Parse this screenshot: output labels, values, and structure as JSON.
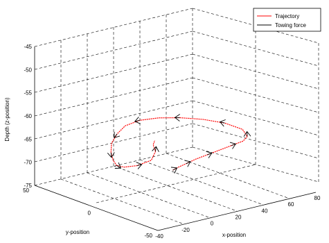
{
  "chart_data": {
    "type": "line",
    "projection": "3d",
    "grid": true,
    "xlabel": "x-position",
    "ylabel": "y-position",
    "zlabel": "Depth (z-position)",
    "xlim": [
      -40,
      80
    ],
    "ylim": [
      -50,
      50
    ],
    "zlim": [
      -75,
      -45
    ],
    "xticks": [
      "-40",
      "-20",
      "0",
      "20",
      "40",
      "60",
      "80"
    ],
    "yticks": [
      "-50",
      "0",
      "50"
    ],
    "zticks": [
      "-75",
      "-70",
      "-65",
      "-60",
      "-55",
      "-50",
      "-45"
    ],
    "legend_position": "top-right",
    "series": [
      {
        "name": "Trajectory",
        "color": "#ff0000",
        "x": [
          -10,
          -5,
          2,
          10,
          20,
          30,
          40,
          50,
          56,
          58,
          52,
          42,
          30,
          18,
          6,
          -4,
          -12,
          -20,
          -26,
          -30,
          -32,
          -30,
          -24,
          -16,
          -10,
          -8,
          -4
        ],
        "y": [
          -30,
          -29,
          -28,
          -27,
          -26,
          -25,
          -24,
          -23,
          -20,
          -14,
          -6,
          1,
          7,
          11,
          14,
          15,
          13,
          9,
          3,
          -3,
          -8,
          -12,
          -16,
          -19,
          -16,
          -12,
          -9
        ],
        "z": [
          -66,
          -65.8,
          -65.6,
          -65.3,
          -65.1,
          -64.9,
          -64.7,
          -64.5,
          -64.2,
          -63.4,
          -62.4,
          -61.6,
          -61,
          -60.6,
          -60.6,
          -61.2,
          -62.2,
          -63.3,
          -64.3,
          -65.1,
          -65.6,
          -65.7,
          -65.4,
          -64.5,
          -63.3,
          -62.4,
          -62
        ]
      },
      {
        "name": "Towing force",
        "color": "#000000",
        "x": [
          -10,
          2,
          20,
          40,
          56,
          52,
          30,
          6,
          -12,
          -26,
          -32,
          -24,
          -10
        ],
        "y": [
          -30,
          -28,
          -26,
          -24,
          -20,
          -6,
          7,
          14,
          13,
          3,
          -8,
          -16,
          -16
        ],
        "z": [
          -66,
          -65.6,
          -65.1,
          -64.7,
          -64.2,
          -62.4,
          -61,
          -60.6,
          -62.2,
          -64.3,
          -65.6,
          -65.4,
          -63.3
        ]
      }
    ]
  }
}
